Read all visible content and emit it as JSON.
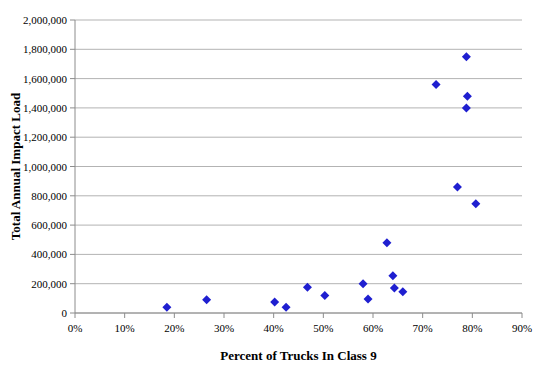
{
  "chart_data": {
    "type": "scatter",
    "x_label": "Percent of Trucks In Class 9",
    "y_label": "Total Annual Impact Load",
    "series": [
      {
        "name": "Total Annual Impact Load",
        "color": "#1f1fd0",
        "marker": "diamond",
        "x": [
          18.5,
          26.5,
          40.2,
          42.5,
          46.8,
          50.3,
          58,
          59,
          62.8,
          64,
          64.3,
          66,
          72.7,
          78.8,
          79,
          78.8,
          77,
          80.7
        ],
        "values": [
          40000,
          90000,
          75000,
          40000,
          175000,
          120000,
          200000,
          95000,
          480000,
          255000,
          170000,
          145000,
          1560000,
          1750000,
          1480000,
          1400000,
          860000,
          745000
        ]
      }
    ],
    "xlim": [
      0,
      90
    ],
    "ylim": [
      0,
      2000000
    ],
    "xticks": [
      {
        "value": 0,
        "label": "0%"
      },
      {
        "value": 10,
        "label": "10%"
      },
      {
        "value": 20,
        "label": "20%"
      },
      {
        "value": 30,
        "label": "30%"
      },
      {
        "value": 40,
        "label": "40%"
      },
      {
        "value": 50,
        "label": "50%"
      },
      {
        "value": 60,
        "label": "60%"
      },
      {
        "value": 70,
        "label": "70%"
      },
      {
        "value": 80,
        "label": "80%"
      },
      {
        "value": 90,
        "label": "90%"
      }
    ],
    "yticks": [
      0,
      {
        "value": 200000,
        "label": "200,000"
      },
      {
        "value": 400000,
        "label": "400,000"
      },
      {
        "value": 600000,
        "label": "600,000"
      },
      {
        "value": 800000,
        "label": "800,000"
      },
      {
        "value": 1000000,
        "label": "1,000,000"
      },
      {
        "value": 1200000,
        "label": "1,200,000"
      },
      {
        "value": 1400000,
        "label": "1,400,000"
      },
      {
        "value": 1600000,
        "label": "1,600,000"
      },
      {
        "value": 1800000,
        "label": "1,800,000"
      },
      {
        "value": 2000000,
        "label": "2,000,000"
      }
    ],
    "grid": true
  }
}
